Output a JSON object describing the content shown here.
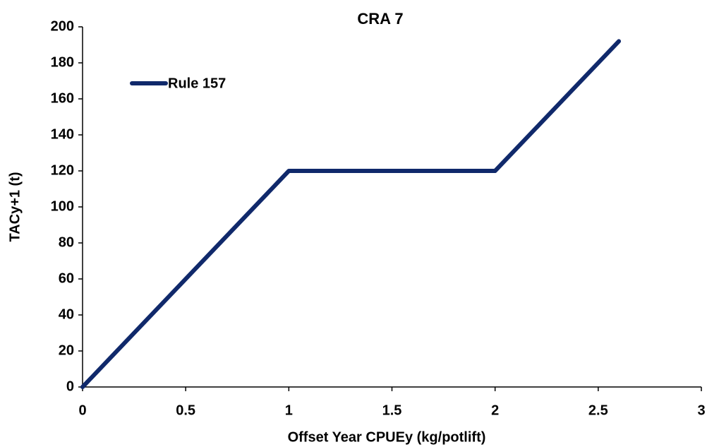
{
  "chart_data": {
    "type": "line",
    "title": "CRA 7",
    "x_label": "Offset Year CPUEy (kg/potlift)",
    "y_label": "TACy+1 (t)",
    "x": [
      0,
      1,
      2,
      2.6
    ],
    "series": [
      {
        "name": "Rule 157",
        "color": "#10296b",
        "values": [
          0,
          120,
          120,
          192
        ]
      }
    ],
    "xlim": [
      0,
      3
    ],
    "xticks": [
      0,
      0.5,
      1,
      1.5,
      2,
      2.5,
      3
    ],
    "ylim": [
      0,
      200
    ],
    "yticks": [
      0,
      20,
      40,
      60,
      80,
      100,
      120,
      140,
      160,
      180,
      200
    ],
    "grid": false,
    "legend": "upper left"
  }
}
